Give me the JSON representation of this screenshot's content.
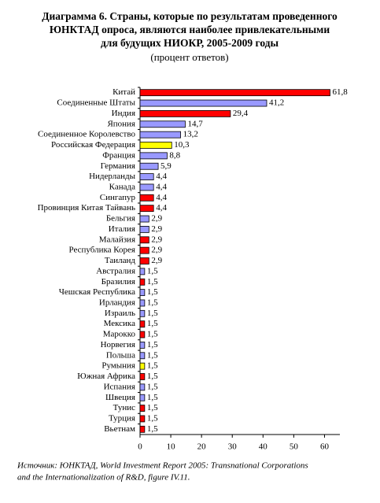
{
  "chart_data": {
    "type": "barh",
    "title_lines": [
      "Диаграмма 6.  Страны, которые по результатам проведенного",
      "ЮНКТАД опроса, являются  наиболее привлекательными",
      "для будущих НИОКР, 2005-2009 годы"
    ],
    "subtitle": "(процент ответов)",
    "categories": [
      "Китай",
      "Соединенные Штаты",
      "Индия",
      "Япония",
      "Соединенное Королевство",
      "Российская Федерация",
      "Франция",
      "Германия",
      "Нидерланды",
      "Канада",
      "Сингапур",
      "Провинция Китая Тайвань",
      "Бельгия",
      "Италия",
      "Малайзия",
      "Республика Корея",
      "Таиланд",
      "Австралия",
      "Бразилия",
      "Чешская Республика",
      "Ирландия",
      "Израиль",
      "Мексика",
      "Марокко",
      "Норвегия",
      "Польша",
      "Румыния",
      "Южная Африка",
      "Испания",
      "Швеция",
      "Тунис",
      "Турция",
      "Вьетнам"
    ],
    "values": [
      61.8,
      41.2,
      29.4,
      14.7,
      13.2,
      10.3,
      8.8,
      5.9,
      4.4,
      4.4,
      4.4,
      4.4,
      2.9,
      2.9,
      2.9,
      2.9,
      2.9,
      1.5,
      1.5,
      1.5,
      1.5,
      1.5,
      1.5,
      1.5,
      1.5,
      1.5,
      1.5,
      1.5,
      1.5,
      1.5,
      1.5,
      1.5,
      1.5
    ],
    "value_labels": [
      "61,8",
      "41,2",
      "29,4",
      "14,7",
      "13,2",
      "10,3",
      "8,8",
      "5,9",
      "4,4",
      "4,4",
      "4,4",
      "4,4",
      "2,9",
      "2,9",
      "2,9",
      "2,9",
      "2,9",
      "1,5",
      "1,5",
      "1,5",
      "1,5",
      "1,5",
      "1,5",
      "1,5",
      "1,5",
      "1,5",
      "1,5",
      "1,5",
      "1,5",
      "1,5",
      "1,5",
      "1,5",
      "1,5"
    ],
    "colors": [
      "#ff0000",
      "#9999ff",
      "#ff0000",
      "#9999ff",
      "#9999ff",
      "#ffff00",
      "#9999ff",
      "#9999ff",
      "#9999ff",
      "#9999ff",
      "#ff0000",
      "#ff0000",
      "#9999ff",
      "#9999ff",
      "#ff0000",
      "#ff0000",
      "#ff0000",
      "#9999ff",
      "#ff0000",
      "#9999ff",
      "#9999ff",
      "#9999ff",
      "#ff0000",
      "#ff0000",
      "#9999ff",
      "#9999ff",
      "#ffff00",
      "#ff0000",
      "#9999ff",
      "#9999ff",
      "#ff0000",
      "#ff0000",
      "#ff0000"
    ],
    "xlim": [
      0,
      65
    ],
    "xticks": [
      0,
      10,
      20,
      30,
      40,
      50,
      60
    ],
    "source_lines": [
      "Источник:  ЮНКТАД, World Investment Report 2005: Transnational Corporations",
      "and the Internationalization of R&D, figure IV.11."
    ]
  }
}
